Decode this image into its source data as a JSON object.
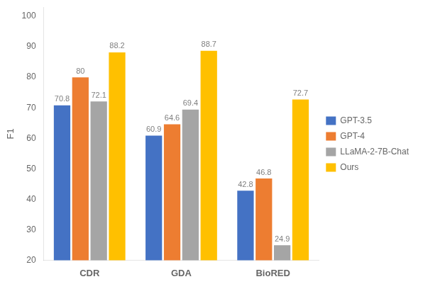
{
  "chart_data": {
    "type": "bar",
    "categories": [
      "CDR",
      "GDA",
      "BioRED"
    ],
    "series": [
      {
        "name": "GPT-3.5",
        "color": "#4472C4",
        "values": [
          70.8,
          60.9,
          42.8
        ]
      },
      {
        "name": "GPT-4",
        "color": "#ED7D31",
        "values": [
          80,
          64.6,
          46.8
        ]
      },
      {
        "name": "LLaMA-2-7B-Chat",
        "color": "#A5A5A5",
        "values": [
          72.1,
          69.4,
          24.9
        ]
      },
      {
        "name": "Ours",
        "color": "#FFC000",
        "values": [
          88.2,
          88.7,
          72.7
        ]
      }
    ],
    "ylabel": "F1",
    "ylim": [
      20,
      103
    ],
    "yticks": [
      20,
      30,
      40,
      50,
      60,
      70,
      80,
      90,
      100
    ],
    "grid": false,
    "legend": "right",
    "data_labels": true
  }
}
